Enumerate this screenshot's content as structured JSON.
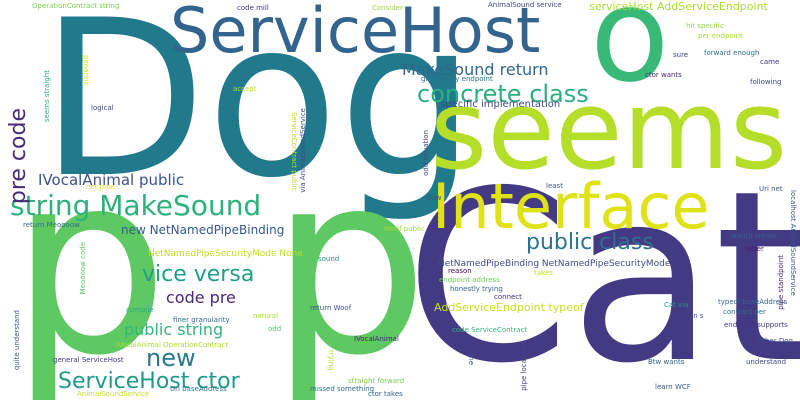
{
  "words": [
    {
      "text": "Dog",
      "color": "#21798c"
    },
    {
      "text": "Cat",
      "color": "#443983"
    },
    {
      "text": "p",
      "color": "#5ec962"
    },
    {
      "text": "p",
      "color": "#5ec962"
    },
    {
      "text": "seems",
      "color": "#b5de2b"
    },
    {
      "text": "Interface",
      "color": "#e0e218"
    },
    {
      "text": "ServiceHost",
      "color": "#32648e"
    },
    {
      "text": "o",
      "color": "#38b977"
    },
    {
      "text": "string MakeSound",
      "color": "#2db27d"
    },
    {
      "text": "concrete class",
      "color": "#2ab07f"
    },
    {
      "text": "MakeSound return",
      "color": "#32658e"
    },
    {
      "text": "pre code",
      "color": "#472c7a"
    },
    {
      "text": "IVocalAnimal public",
      "color": "#3b528b"
    },
    {
      "text": "serviceHost AddServiceEndpoint",
      "color": "#aadc32"
    },
    {
      "text": "specific implementation",
      "color": "#3e4989"
    },
    {
      "text": "public class",
      "color": "#2c728e"
    },
    {
      "text": "vice versa",
      "color": "#1f9e89"
    },
    {
      "text": "new",
      "color": "#2a788e"
    },
    {
      "text": "code pre",
      "color": "#482878"
    },
    {
      "text": "public string",
      "color": "#31b57b"
    },
    {
      "text": "ServiceHost ctor",
      "color": "#1f9a8a"
    },
    {
      "text": "new NetNamedPipeBinding",
      "color": "#38588c"
    },
    {
      "text": "NetNamedPipeSecurityMode None",
      "color": "#bddf26"
    },
    {
      "text": "NetNamedPipeBinding NetNamedPipeSecurityMode",
      "color": "#3e4c8a"
    },
    {
      "text": "AddServiceEndpoint typeof",
      "color": "#c8e020"
    },
    {
      "text": "OperationContract string",
      "color": "#7ad151"
    },
    {
      "text": "code mill",
      "color": "#443a83"
    },
    {
      "text": "Consider",
      "color": "#a0da39"
    },
    {
      "text": "AnimalSound service",
      "color": "#404688"
    },
    {
      "text": "granularity endpoint",
      "color": "#2d708e"
    },
    {
      "text": "hit specific",
      "color": "#90d743"
    },
    {
      "text": "per endpoint",
      "color": "#a8db34"
    },
    {
      "text": "forward enough",
      "color": "#2e6f8e"
    },
    {
      "text": "sure",
      "color": "#3f4788"
    },
    {
      "text": "came",
      "color": "#46327e"
    },
    {
      "text": "ctor wants",
      "color": "#482576"
    },
    {
      "text": "following",
      "color": "#404588"
    },
    {
      "text": "logical",
      "color": "#3f4889"
    },
    {
      "text": "pedantic",
      "color": "#dde318"
    },
    {
      "text": "accept",
      "color": "#bade28"
    },
    {
      "text": "seems straight",
      "color": "#28ae80"
    },
    {
      "text": "odd situation",
      "color": "#414487"
    },
    {
      "text": "least",
      "color": "#3b528b"
    },
    {
      "text": "Uri net",
      "color": "#3b528b"
    },
    {
      "text": "now",
      "color": "#3b528b"
    },
    {
      "text": "Woof public",
      "color": "#a2da37"
    },
    {
      "text": "net pipe",
      "color": "#e2e418"
    },
    {
      "text": "return Meoooow",
      "color": "#30678d"
    },
    {
      "text": "wanto create",
      "color": "#30688e"
    },
    {
      "text": "latter",
      "color": "#48186a"
    },
    {
      "text": "sound",
      "color": "#1f958b"
    },
    {
      "text": "return Woof",
      "color": "#3a538b"
    },
    {
      "text": "reason",
      "color": "#440154"
    },
    {
      "text": "endpoint address",
      "color": "#6ccd5a"
    },
    {
      "text": "honestly trying",
      "color": "#33638d"
    },
    {
      "text": "connect",
      "color": "#46327e"
    },
    {
      "text": "takes",
      "color": "#c5e021"
    },
    {
      "text": "Cat via",
      "color": "#1e9b8a"
    },
    {
      "text": "typeof baseAddress",
      "color": "#32648e"
    },
    {
      "text": "contract per",
      "color": "#2d718e"
    },
    {
      "text": "reason s",
      "color": "#404588"
    },
    {
      "text": "compile",
      "color": "#27ad81"
    },
    {
      "text": "finer granularity",
      "color": "#2f6c8e"
    },
    {
      "text": "natural",
      "color": "#a2da37"
    },
    {
      "text": "odd",
      "color": "#56c667"
    },
    {
      "text": "IVocalAnimal OperationContract",
      "color": "#addc30"
    },
    {
      "text": "code ServiceContract",
      "color": "#32b67a"
    },
    {
      "text": "endpoint supports",
      "color": "#453781"
    },
    {
      "text": "general ServiceHost",
      "color": "#443a83"
    },
    {
      "text": "IVocalAnimal",
      "color": "#481b6d"
    },
    {
      "text": "trying",
      "color": "#b5de2b"
    },
    {
      "text": "one",
      "color": "#3b528b"
    },
    {
      "text": "either Dog",
      "color": "#3e4a89"
    },
    {
      "text": "Btw wants",
      "color": "#33638d"
    },
    {
      "text": "understand",
      "color": "#3f4788"
    },
    {
      "text": "AnimalSoundService",
      "color": "#c0df25"
    },
    {
      "text": "missed something",
      "color": "#2f6b8e"
    },
    {
      "text": "straight forward",
      "color": "#7ad151"
    },
    {
      "text": "Uri baseAddress",
      "color": "#2c718e"
    },
    {
      "text": "ctor takes",
      "color": "#31668e"
    },
    {
      "text": "learn WCF",
      "color": "#38598c"
    },
    {
      "text": "quite understand",
      "color": "#38588c"
    },
    {
      "text": "ServiceContract public",
      "color": "#b8de29"
    },
    {
      "text": "via AnimalSoundService",
      "color": "#3f4889"
    },
    {
      "text": "Meoooow code",
      "color": "#5ec962"
    },
    {
      "text": "pipe localhost",
      "color": "#414287"
    },
    {
      "text": "pipe standpoint",
      "color": "#482475"
    },
    {
      "text": "localhost AnimalSoundService",
      "color": "#3b528b"
    }
  ]
}
